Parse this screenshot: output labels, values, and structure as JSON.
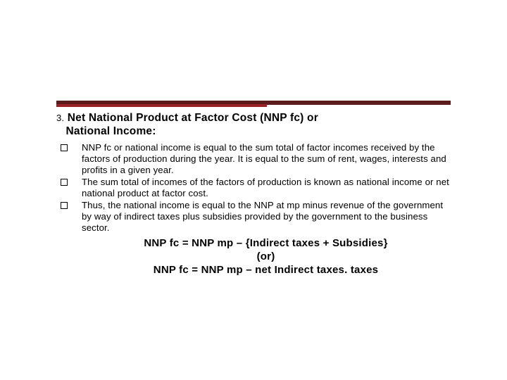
{
  "colors": {
    "divider_dark": "#5c1c1c",
    "divider_red": "#9a2226",
    "text": "#000000",
    "background": "#ffffff"
  },
  "heading": {
    "number": "3.",
    "title_line1": "Net National Product at Factor Cost (NNP fc) or",
    "title_line2": "National Income:"
  },
  "bullets": [
    "NNP fc or national income is equal to the sum total of factor incomes received by the factors of production during the year. It is equal to the sum of rent, wages, interests and profits in a given year.",
    "The sum total of incomes of the factors of production is known as national income or net national product at factor cost.",
    "Thus, the national income is equal to the NNP at mp minus revenue of the government by way of indirect taxes plus subsidies provided by the government to the business sector."
  ],
  "formula": {
    "line1": "NNP fc = NNP mp – {Indirect taxes + Subsidies}",
    "line2": "(or)",
    "line3": "NNP fc = NNP mp – net Indirect taxes. taxes"
  }
}
